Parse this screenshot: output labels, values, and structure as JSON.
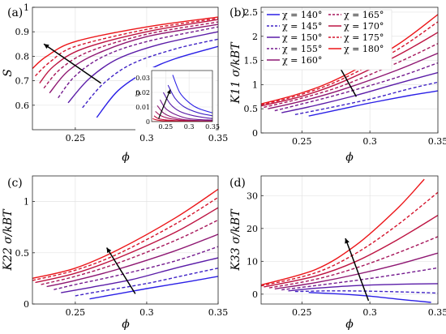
{
  "figure": {
    "panels": [
      {
        "id": "a",
        "label": "(a)",
        "xlabel": "ϕ",
        "ylabel": "S",
        "xlim": [
          0.22,
          0.35
        ],
        "ylim": [
          0.5,
          1.0
        ],
        "xticks": [
          "0.25",
          "0.3",
          "0.35"
        ],
        "xtick_values": [
          0.25,
          0.3,
          0.35
        ],
        "yticks": [
          "0.6",
          "0.7",
          "0.8",
          "0.9",
          "1"
        ],
        "ytick_values": [
          0.6,
          0.7,
          0.8,
          0.9,
          1.0
        ]
      },
      {
        "id": "b",
        "label": "(b)",
        "xlabel": "ϕ",
        "ylabel": "K11 σ/kBT",
        "xlim": [
          0.22,
          0.35
        ],
        "ylim": [
          0,
          2.6
        ],
        "xticks": [
          "0.25",
          "0.3",
          "0.35"
        ],
        "xtick_values": [
          0.25,
          0.3,
          0.35
        ],
        "yticks": [
          "0",
          "0.5",
          "1",
          "1.5",
          "2",
          "2.5"
        ],
        "ytick_values": [
          0,
          0.5,
          1.0,
          1.5,
          2.0,
          2.5
        ]
      },
      {
        "id": "c",
        "label": "(c)",
        "xlabel": "ϕ",
        "ylabel": "K22 σ/kBT",
        "xlim": [
          0.22,
          0.35
        ],
        "ylim": [
          0,
          1.25
        ],
        "xticks": [
          "0.25",
          "0.3",
          "0.35"
        ],
        "xtick_values": [
          0.25,
          0.3,
          0.35
        ],
        "yticks": [
          "0",
          "0.5",
          "1"
        ],
        "ytick_values": [
          0,
          0.5,
          1.0
        ]
      },
      {
        "id": "d",
        "label": "(d)",
        "xlabel": "ϕ",
        "ylabel": "K33 σ/kBT",
        "xlim": [
          0.22,
          0.35
        ],
        "ylim": [
          -3,
          36
        ],
        "xticks": [
          "0.25",
          "0.3",
          "0.35"
        ],
        "xtick_values": [
          0.25,
          0.3,
          0.35
        ],
        "yticks": [
          "0",
          "10",
          "20",
          "30"
        ],
        "ytick_values": [
          0,
          10,
          20,
          30
        ]
      }
    ],
    "inset": {
      "ylabel": "D",
      "xlim": [
        0.22,
        0.35
      ],
      "ylim": [
        0,
        0.035
      ],
      "xticks": [
        "0.25",
        "0.3",
        "0.35"
      ],
      "xtick_values": [
        0.25,
        0.3,
        0.35
      ],
      "yticks": [
        "0",
        "0.01",
        "0.02",
        "0.03"
      ],
      "ytick_values": [
        0,
        0.01,
        0.02,
        0.03
      ]
    },
    "legend": {
      "entries": [
        {
          "label": "χ = 140°",
          "color": "#2a1fe6",
          "dash": false
        },
        {
          "label": "χ = 145°",
          "color": "#3f22c6",
          "dash": true
        },
        {
          "label": "χ = 150°",
          "color": "#5a1ca8",
          "dash": false
        },
        {
          "label": "χ = 155°",
          "color": "#741a8e",
          "dash": true
        },
        {
          "label": "χ = 160°",
          "color": "#8e1772",
          "dash": false
        },
        {
          "label": "χ = 165°",
          "color": "#a6155a",
          "dash": true
        },
        {
          "label": "χ = 170°",
          "color": "#bd1442",
          "dash": false
        },
        {
          "label": "χ = 175°",
          "color": "#d4132c",
          "dash": true
        },
        {
          "label": "χ = 180°",
          "color": "#ec1518",
          "dash": false
        }
      ]
    }
  },
  "chart_data": [
    {
      "type": "line",
      "panel": "a",
      "xlabel": "ϕ",
      "ylabel": "S",
      "xlim": [
        0.22,
        0.35
      ],
      "ylim": [
        0.5,
        1.0
      ],
      "series": [
        {
          "name": "χ = 140°",
          "x": [
            0.265,
            0.28,
            0.3,
            0.32,
            0.35
          ],
          "y": [
            0.55,
            0.66,
            0.74,
            0.79,
            0.84
          ]
        },
        {
          "name": "χ = 145°",
          "x": [
            0.255,
            0.27,
            0.29,
            0.32,
            0.35
          ],
          "y": [
            0.59,
            0.69,
            0.77,
            0.83,
            0.87
          ]
        },
        {
          "name": "χ = 150°",
          "x": [
            0.245,
            0.26,
            0.28,
            0.31,
            0.35
          ],
          "y": [
            0.61,
            0.71,
            0.79,
            0.85,
            0.9
          ]
        },
        {
          "name": "χ = 155°",
          "x": [
            0.238,
            0.25,
            0.27,
            0.3,
            0.35
          ],
          "y": [
            0.63,
            0.72,
            0.8,
            0.86,
            0.92
          ]
        },
        {
          "name": "χ = 160°",
          "x": [
            0.232,
            0.245,
            0.265,
            0.3,
            0.35
          ],
          "y": [
            0.65,
            0.74,
            0.81,
            0.88,
            0.93
          ]
        },
        {
          "name": "χ = 165°",
          "x": [
            0.228,
            0.24,
            0.26,
            0.3,
            0.35
          ],
          "y": [
            0.67,
            0.75,
            0.82,
            0.89,
            0.94
          ]
        },
        {
          "name": "χ = 170°",
          "x": [
            0.225,
            0.235,
            0.255,
            0.3,
            0.35
          ],
          "y": [
            0.69,
            0.76,
            0.83,
            0.9,
            0.95
          ]
        },
        {
          "name": "χ = 175°",
          "x": [
            0.222,
            0.233,
            0.25,
            0.3,
            0.35
          ],
          "y": [
            0.72,
            0.78,
            0.84,
            0.91,
            0.955
          ]
        },
        {
          "name": "χ = 180°",
          "x": [
            0.22,
            0.23,
            0.25,
            0.3,
            0.35
          ],
          "y": [
            0.75,
            0.8,
            0.86,
            0.92,
            0.96
          ]
        }
      ]
    },
    {
      "type": "line",
      "panel": "a-inset",
      "ylabel": "D",
      "xlim": [
        0.22,
        0.35
      ],
      "ylim": [
        0,
        0.035
      ],
      "series": [
        {
          "name": "χ = 140°",
          "x": [
            0.265,
            0.28,
            0.3,
            0.32,
            0.35
          ],
          "y": [
            0.032,
            0.02,
            0.013,
            0.009,
            0.006
          ]
        },
        {
          "name": "χ = 145°",
          "x": [
            0.255,
            0.27,
            0.29,
            0.32,
            0.35
          ],
          "y": [
            0.025,
            0.016,
            0.01,
            0.006,
            0.004
          ]
        },
        {
          "name": "χ = 150°",
          "x": [
            0.245,
            0.26,
            0.28,
            0.31,
            0.35
          ],
          "y": [
            0.02,
            0.012,
            0.007,
            0.004,
            0.002
          ]
        },
        {
          "name": "χ = 155°",
          "x": [
            0.238,
            0.25,
            0.27,
            0.3,
            0.35
          ],
          "y": [
            0.015,
            0.009,
            0.005,
            0.002,
            0.001
          ]
        },
        {
          "name": "χ = 160°",
          "x": [
            0.232,
            0.245,
            0.265,
            0.3,
            0.35
          ],
          "y": [
            0.011,
            0.006,
            0.003,
            0.001,
            0.0005
          ]
        },
        {
          "name": "χ = 165°",
          "x": [
            0.228,
            0.24,
            0.26,
            0.3,
            0.35
          ],
          "y": [
            0.007,
            0.004,
            0.002,
            0.0006,
            0.0002
          ]
        },
        {
          "name": "χ = 170°",
          "x": [
            0.225,
            0.235,
            0.255,
            0.3,
            0.35
          ],
          "y": [
            0.004,
            0.002,
            0.001,
            0.0003,
            0.0001
          ]
        },
        {
          "name": "χ = 175°",
          "x": [
            0.222,
            0.233,
            0.25,
            0.3,
            0.35
          ],
          "y": [
            0.002,
            0.001,
            0.0005,
            0.0001,
            0.0
          ]
        },
        {
          "name": "χ = 180°",
          "x": [
            0.22,
            0.23,
            0.25,
            0.3,
            0.35
          ],
          "y": [
            0.0,
            0.0,
            0.0,
            0.0,
            0.0
          ]
        }
      ]
    },
    {
      "type": "line",
      "panel": "b",
      "xlabel": "ϕ",
      "ylabel": "K11 σ/kBT",
      "xlim": [
        0.22,
        0.35
      ],
      "ylim": [
        0,
        2.6
      ],
      "series": [
        {
          "name": "χ = 140°",
          "x": [
            0.255,
            0.28,
            0.3,
            0.33,
            0.35
          ],
          "y": [
            0.35,
            0.5,
            0.62,
            0.78,
            0.87
          ]
        },
        {
          "name": "χ = 145°",
          "x": [
            0.245,
            0.27,
            0.3,
            0.33,
            0.35
          ],
          "y": [
            0.38,
            0.52,
            0.7,
            0.92,
            1.05
          ]
        },
        {
          "name": "χ = 150°",
          "x": [
            0.235,
            0.26,
            0.29,
            0.32,
            0.35
          ],
          "y": [
            0.42,
            0.57,
            0.78,
            1.02,
            1.25
          ]
        },
        {
          "name": "χ = 155°",
          "x": [
            0.23,
            0.25,
            0.28,
            0.32,
            0.35
          ],
          "y": [
            0.46,
            0.6,
            0.82,
            1.15,
            1.45
          ]
        },
        {
          "name": "χ = 160°",
          "x": [
            0.225,
            0.25,
            0.28,
            0.32,
            0.35
          ],
          "y": [
            0.5,
            0.66,
            0.9,
            1.3,
            1.65
          ]
        },
        {
          "name": "χ = 165°",
          "x": [
            0.222,
            0.25,
            0.28,
            0.32,
            0.35
          ],
          "y": [
            0.53,
            0.72,
            0.98,
            1.45,
            1.85
          ]
        },
        {
          "name": "χ = 170°",
          "x": [
            0.22,
            0.25,
            0.28,
            0.32,
            0.35
          ],
          "y": [
            0.56,
            0.76,
            1.06,
            1.6,
            2.08
          ]
        },
        {
          "name": "χ = 175°",
          "x": [
            0.22,
            0.25,
            0.28,
            0.32,
            0.35
          ],
          "y": [
            0.58,
            0.8,
            1.12,
            1.72,
            2.3
          ]
        },
        {
          "name": "χ = 180°",
          "x": [
            0.22,
            0.25,
            0.28,
            0.32,
            0.35
          ],
          "y": [
            0.6,
            0.83,
            1.17,
            1.82,
            2.45
          ]
        }
      ]
    },
    {
      "type": "line",
      "panel": "c",
      "xlabel": "ϕ",
      "ylabel": "K22 σ/kBT",
      "xlim": [
        0.22,
        0.35
      ],
      "ylim": [
        0,
        1.25
      ],
      "series": [
        {
          "name": "χ = 140°",
          "x": [
            0.26,
            0.28,
            0.3,
            0.33,
            0.35
          ],
          "y": [
            0.05,
            0.1,
            0.15,
            0.22,
            0.27
          ]
        },
        {
          "name": "χ = 145°",
          "x": [
            0.25,
            0.27,
            0.3,
            0.33,
            0.35
          ],
          "y": [
            0.08,
            0.13,
            0.2,
            0.29,
            0.35
          ]
        },
        {
          "name": "χ = 150°",
          "x": [
            0.24,
            0.26,
            0.29,
            0.32,
            0.35
          ],
          "y": [
            0.11,
            0.16,
            0.24,
            0.35,
            0.45
          ]
        },
        {
          "name": "χ = 155°",
          "x": [
            0.235,
            0.25,
            0.28,
            0.32,
            0.35
          ],
          "y": [
            0.14,
            0.19,
            0.28,
            0.42,
            0.56
          ]
        },
        {
          "name": "χ = 160°",
          "x": [
            0.23,
            0.25,
            0.28,
            0.32,
            0.35
          ],
          "y": [
            0.17,
            0.23,
            0.34,
            0.52,
            0.68
          ]
        },
        {
          "name": "χ = 165°",
          "x": [
            0.226,
            0.25,
            0.28,
            0.32,
            0.35
          ],
          "y": [
            0.19,
            0.27,
            0.4,
            0.62,
            0.82
          ]
        },
        {
          "name": "χ = 170°",
          "x": [
            0.222,
            0.25,
            0.28,
            0.32,
            0.35
          ],
          "y": [
            0.21,
            0.3,
            0.45,
            0.7,
            0.94
          ]
        },
        {
          "name": "χ = 175°",
          "x": [
            0.22,
            0.25,
            0.28,
            0.32,
            0.35
          ],
          "y": [
            0.23,
            0.33,
            0.49,
            0.78,
            1.04
          ]
        },
        {
          "name": "χ = 180°",
          "x": [
            0.22,
            0.25,
            0.28,
            0.32,
            0.35
          ],
          "y": [
            0.25,
            0.35,
            0.53,
            0.84,
            1.12
          ]
        }
      ]
    },
    {
      "type": "line",
      "panel": "d",
      "xlabel": "ϕ",
      "ylabel": "K33 σ/kBT",
      "xlim": [
        0.22,
        0.35
      ],
      "ylim": [
        -3,
        36
      ],
      "series": [
        {
          "name": "χ = 140°",
          "x": [
            0.255,
            0.28,
            0.3,
            0.32,
            0.345
          ],
          "y": [
            0.5,
            0.0,
            -0.6,
            -1.5,
            -2.5
          ]
        },
        {
          "name": "χ = 145°",
          "x": [
            0.245,
            0.27,
            0.3,
            0.33,
            0.35
          ],
          "y": [
            0.8,
            1.0,
            0.9,
            0.6,
            0.3
          ]
        },
        {
          "name": "χ = 150°",
          "x": [
            0.24,
            0.26,
            0.29,
            0.32,
            0.35
          ],
          "y": [
            1.0,
            1.8,
            2.6,
            3.0,
            3.2
          ]
        },
        {
          "name": "χ = 155°",
          "x": [
            0.235,
            0.26,
            0.29,
            0.32,
            0.35
          ],
          "y": [
            1.3,
            2.6,
            4.2,
            6.0,
            8.0
          ]
        },
        {
          "name": "χ = 160°",
          "x": [
            0.23,
            0.26,
            0.29,
            0.32,
            0.35
          ],
          "y": [
            1.6,
            3.5,
            6.0,
            9.0,
            12.5
          ]
        },
        {
          "name": "χ = 165°",
          "x": [
            0.226,
            0.26,
            0.29,
            0.32,
            0.35
          ],
          "y": [
            1.9,
            4.5,
            8.0,
            12.5,
            17.5
          ]
        },
        {
          "name": "χ = 170°",
          "x": [
            0.222,
            0.26,
            0.29,
            0.32,
            0.35
          ],
          "y": [
            2.2,
            5.5,
            10.0,
            16.5,
            24.0
          ]
        },
        {
          "name": "χ = 175°",
          "x": [
            0.22,
            0.26,
            0.29,
            0.32,
            0.35
          ],
          "y": [
            2.5,
            6.5,
            12.5,
            21.0,
            31.0
          ]
        },
        {
          "name": "χ = 180°",
          "x": [
            0.22,
            0.26,
            0.29,
            0.32,
            0.34
          ],
          "y": [
            2.8,
            7.5,
            15.0,
            26.0,
            35.0
          ]
        }
      ]
    }
  ]
}
